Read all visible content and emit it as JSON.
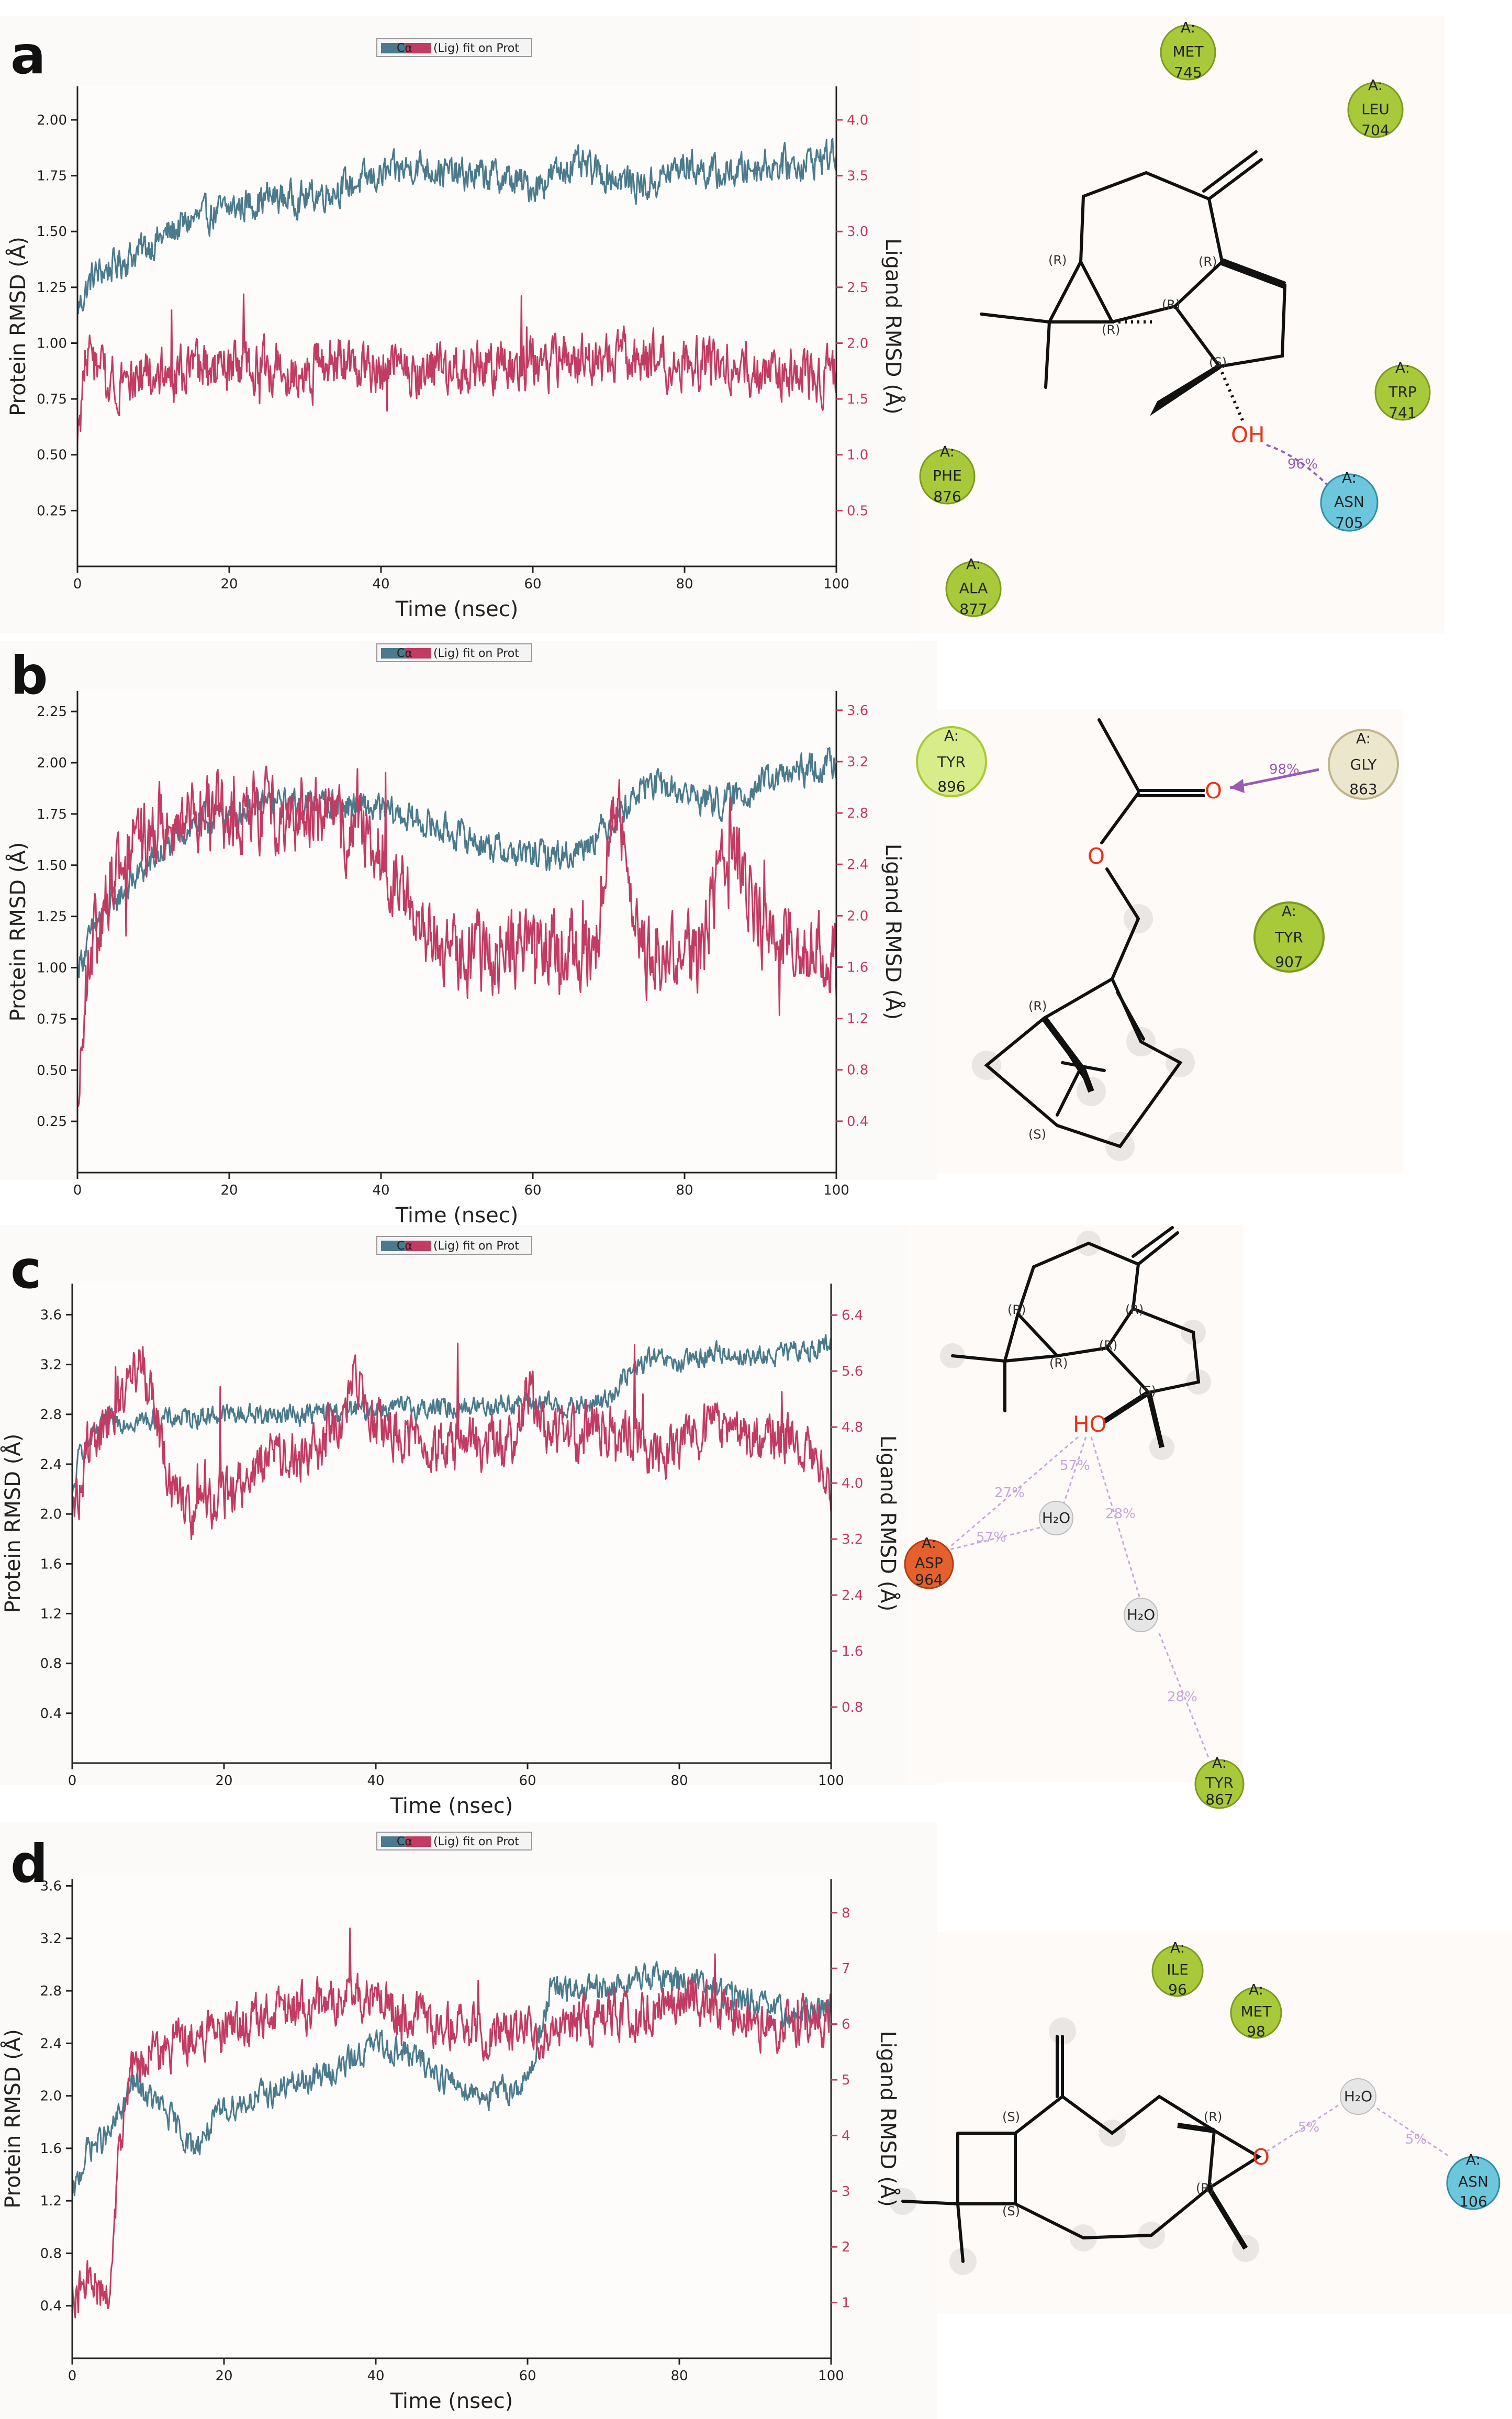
{
  "figure": {
    "colors": {
      "protein": "#4a7a8c",
      "ligand": "#c23b62",
      "hbond": "#9b5ab8",
      "hbond_light": "#c9a6dc",
      "hydrophobic": "#a8c93a",
      "polar": "#6cc7dd",
      "neutral": "#e8e2c8",
      "negative": "#e4602c",
      "water": "#e0e0e0"
    },
    "legend_text": "(Lig) fit on Prot",
    "legend_prefix": "Cα",
    "xlabel": "Time (nsec)",
    "ylabel_left": "Protein RMSD (Å)",
    "ylabel_right": "Ligand RMSD (Å)"
  },
  "chart_data": [
    {
      "panel": "a",
      "type": "line",
      "xlim": [
        0,
        100
      ],
      "x_ticks": [
        "0",
        "20",
        "40",
        "60",
        "80",
        "100"
      ],
      "left_ticks": [
        "0.25",
        "0.50",
        "0.75",
        "1.00",
        "1.25",
        "1.50",
        "1.75",
        "2.00"
      ],
      "left_tick_values": [
        0.25,
        0.5,
        0.75,
        1.0,
        1.25,
        1.5,
        1.75,
        2.0
      ],
      "ylim_left": [
        0.0,
        2.15
      ],
      "right_ticks": [
        "0.5",
        "1.0",
        "1.5",
        "2.0",
        "2.5",
        "3.0",
        "3.5",
        "4.0"
      ],
      "right_tick_values": [
        0.5,
        1.0,
        1.5,
        2.0,
        2.5,
        3.0,
        3.5,
        4.0
      ],
      "ylim_right": [
        0.0,
        4.3
      ],
      "series": [
        {
          "name": "Protein Cα RMSD",
          "axis": "left",
          "profile": [
            [
              0,
              1.15
            ],
            [
              2,
              1.3
            ],
            [
              5,
              1.35
            ],
            [
              10,
              1.45
            ],
            [
              15,
              1.55
            ],
            [
              20,
              1.6
            ],
            [
              25,
              1.65
            ],
            [
              30,
              1.65
            ],
            [
              35,
              1.7
            ],
            [
              40,
              1.75
            ],
            [
              45,
              1.8
            ],
            [
              50,
              1.75
            ],
            [
              55,
              1.75
            ],
            [
              60,
              1.7
            ],
            [
              65,
              1.8
            ],
            [
              70,
              1.75
            ],
            [
              75,
              1.7
            ],
            [
              80,
              1.8
            ],
            [
              85,
              1.75
            ],
            [
              90,
              1.8
            ],
            [
              95,
              1.8
            ],
            [
              100,
              1.85
            ]
          ],
          "noise": 0.07
        },
        {
          "name": "Ligand fit on Prot",
          "axis": "right",
          "profile": [
            [
              0,
              1.0
            ],
            [
              1,
              1.9
            ],
            [
              3,
              1.7
            ],
            [
              10,
              1.7
            ],
            [
              20,
              1.75
            ],
            [
              30,
              1.8
            ],
            [
              40,
              1.8
            ],
            [
              50,
              1.75
            ],
            [
              60,
              1.8
            ],
            [
              70,
              1.85
            ],
            [
              80,
              1.85
            ],
            [
              90,
              1.75
            ],
            [
              100,
              1.7
            ]
          ],
          "noise": 0.22
        }
      ]
    },
    {
      "panel": "b",
      "type": "line",
      "xlim": [
        0,
        100
      ],
      "x_ticks": [
        "0",
        "20",
        "40",
        "60",
        "80",
        "100"
      ],
      "left_ticks": [
        "0.25",
        "0.50",
        "0.75",
        "1.00",
        "1.25",
        "1.50",
        "1.75",
        "2.00",
        "2.25"
      ],
      "left_tick_values": [
        0.25,
        0.5,
        0.75,
        1.0,
        1.25,
        1.5,
        1.75,
        2.0,
        2.25
      ],
      "ylim_left": [
        0.0,
        2.35
      ],
      "right_ticks": [
        "0.4",
        "0.8",
        "1.2",
        "1.6",
        "2.0",
        "2.4",
        "2.8",
        "3.2",
        "3.6"
      ],
      "right_tick_values": [
        0.4,
        0.8,
        1.2,
        1.6,
        2.0,
        2.4,
        2.8,
        3.2,
        3.6
      ],
      "ylim_right": [
        0.0,
        3.75
      ],
      "series": [
        {
          "name": "Protein Cα RMSD",
          "axis": "left",
          "profile": [
            [
              0,
              1.0
            ],
            [
              3,
              1.25
            ],
            [
              8,
              1.45
            ],
            [
              15,
              1.7
            ],
            [
              25,
              1.8
            ],
            [
              35,
              1.8
            ],
            [
              42,
              1.75
            ],
            [
              50,
              1.65
            ],
            [
              58,
              1.55
            ],
            [
              65,
              1.55
            ],
            [
              70,
              1.7
            ],
            [
              75,
              1.9
            ],
            [
              80,
              1.85
            ],
            [
              85,
              1.8
            ],
            [
              90,
              1.9
            ],
            [
              95,
              1.95
            ],
            [
              100,
              2.0
            ]
          ],
          "noise": 0.07
        },
        {
          "name": "Ligand fit on Prot",
          "axis": "right",
          "profile": [
            [
              0,
              0.4
            ],
            [
              1,
              1.5
            ],
            [
              5,
              2.4
            ],
            [
              10,
              2.7
            ],
            [
              20,
              2.8
            ],
            [
              30,
              2.8
            ],
            [
              38,
              2.6
            ],
            [
              43,
              2.2
            ],
            [
              48,
              1.7
            ],
            [
              55,
              1.7
            ],
            [
              62,
              1.8
            ],
            [
              68,
              1.7
            ],
            [
              71,
              2.9
            ],
            [
              75,
              1.7
            ],
            [
              82,
              1.7
            ],
            [
              86,
              2.6
            ],
            [
              90,
              1.9
            ],
            [
              95,
              1.8
            ],
            [
              100,
              1.7
            ]
          ],
          "noise": 0.28
        }
      ]
    },
    {
      "panel": "c",
      "type": "line",
      "xlim": [
        0,
        100
      ],
      "x_ticks": [
        "0",
        "20",
        "40",
        "60",
        "80",
        "100"
      ],
      "left_ticks": [
        "0.4",
        "0.8",
        "1.2",
        "1.6",
        "2.0",
        "2.4",
        "2.8",
        "3.2",
        "3.6"
      ],
      "left_tick_values": [
        0.4,
        0.8,
        1.2,
        1.6,
        2.0,
        2.4,
        2.8,
        3.2,
        3.6
      ],
      "ylim_left": [
        0.0,
        3.85
      ],
      "right_ticks": [
        "0.8",
        "1.6",
        "2.4",
        "3.2",
        "4.0",
        "4.8",
        "5.6",
        "6.4"
      ],
      "right_tick_values": [
        0.8,
        1.6,
        2.4,
        3.2,
        4.0,
        4.8,
        5.6,
        6.4
      ],
      "ylim_right": [
        0.0,
        6.85
      ],
      "series": [
        {
          "name": "Protein Cα RMSD",
          "axis": "left",
          "profile": [
            [
              0,
              2.1
            ],
            [
              1,
              2.5
            ],
            [
              5,
              2.75
            ],
            [
              10,
              2.75
            ],
            [
              20,
              2.8
            ],
            [
              30,
              2.8
            ],
            [
              40,
              2.85
            ],
            [
              50,
              2.85
            ],
            [
              60,
              2.9
            ],
            [
              66,
              2.85
            ],
            [
              70,
              2.9
            ],
            [
              73,
              3.1
            ],
            [
              76,
              3.25
            ],
            [
              80,
              3.2
            ],
            [
              85,
              3.3
            ],
            [
              90,
              3.25
            ],
            [
              95,
              3.3
            ],
            [
              100,
              3.35
            ]
          ],
          "noise": 0.08
        },
        {
          "name": "Ligand fit on Prot",
          "axis": "right",
          "profile": [
            [
              0,
              3.4
            ],
            [
              2,
              4.5
            ],
            [
              6,
              5.1
            ],
            [
              9,
              5.8
            ],
            [
              11,
              5.0
            ],
            [
              13,
              3.9
            ],
            [
              16,
              3.5
            ],
            [
              20,
              3.8
            ],
            [
              25,
              4.3
            ],
            [
              30,
              4.4
            ],
            [
              35,
              4.8
            ],
            [
              37,
              5.6
            ],
            [
              40,
              4.8
            ],
            [
              50,
              4.5
            ],
            [
              58,
              4.6
            ],
            [
              60,
              5.3
            ],
            [
              63,
              4.6
            ],
            [
              70,
              4.8
            ],
            [
              78,
              4.4
            ],
            [
              85,
              4.8
            ],
            [
              90,
              4.6
            ],
            [
              95,
              4.7
            ],
            [
              100,
              4.0
            ]
          ],
          "noise": 0.35
        }
      ]
    },
    {
      "panel": "d",
      "type": "line",
      "xlim": [
        0,
        100
      ],
      "x_ticks": [
        "0",
        "20",
        "40",
        "60",
        "80",
        "100"
      ],
      "left_ticks": [
        "0.4",
        "0.8",
        "1.2",
        "1.6",
        "2.0",
        "2.4",
        "2.8",
        "3.2",
        "3.6"
      ],
      "left_tick_values": [
        0.4,
        0.8,
        1.2,
        1.6,
        2.0,
        2.4,
        2.8,
        3.2,
        3.6
      ],
      "ylim_left": [
        0.0,
        3.65
      ],
      "right_ticks": [
        "1",
        "2",
        "3",
        "4",
        "5",
        "6",
        "7",
        "8"
      ],
      "right_tick_values": [
        1,
        2,
        3,
        4,
        5,
        6,
        7,
        8
      ],
      "ylim_right": [
        0.0,
        8.6
      ],
      "series": [
        {
          "name": "Protein Cα RMSD",
          "axis": "left",
          "profile": [
            [
              0,
              1.2
            ],
            [
              2,
              1.6
            ],
            [
              5,
              1.7
            ],
            [
              8,
              2.1
            ],
            [
              12,
              1.9
            ],
            [
              16,
              1.6
            ],
            [
              20,
              1.9
            ],
            [
              25,
              2.0
            ],
            [
              30,
              2.1
            ],
            [
              35,
              2.2
            ],
            [
              40,
              2.4
            ],
            [
              45,
              2.3
            ],
            [
              50,
              2.1
            ],
            [
              55,
              2.0
            ],
            [
              60,
              2.1
            ],
            [
              63,
              2.8
            ],
            [
              70,
              2.8
            ],
            [
              75,
              2.9
            ],
            [
              80,
              2.9
            ],
            [
              85,
              2.8
            ],
            [
              90,
              2.7
            ],
            [
              95,
              2.6
            ],
            [
              100,
              2.7
            ]
          ],
          "noise": 0.1
        },
        {
          "name": "Ligand fit on Prot",
          "axis": "right",
          "profile": [
            [
              0,
              1.2
            ],
            [
              3,
              1.3
            ],
            [
              5,
              1.2
            ],
            [
              6,
              3.5
            ],
            [
              8,
              5.2
            ],
            [
              12,
              5.6
            ],
            [
              18,
              5.8
            ],
            [
              25,
              6.1
            ],
            [
              30,
              6.3
            ],
            [
              38,
              6.5
            ],
            [
              42,
              6.3
            ],
            [
              48,
              6.0
            ],
            [
              55,
              5.8
            ],
            [
              62,
              5.9
            ],
            [
              70,
              6.1
            ],
            [
              75,
              6.2
            ],
            [
              80,
              6.5
            ],
            [
              85,
              6.3
            ],
            [
              90,
              6.0
            ],
            [
              95,
              6.0
            ],
            [
              100,
              6.1
            ]
          ],
          "noise": 0.4
        }
      ]
    }
  ],
  "panels": [
    {
      "label": "a"
    },
    {
      "label": "b"
    },
    {
      "label": "c"
    },
    {
      "label": "d"
    }
  ],
  "diagrams": {
    "a": {
      "residues": [
        {
          "chain": "A:",
          "name": "MET",
          "num": "745"
        },
        {
          "chain": "A:",
          "name": "LEU",
          "num": "704"
        },
        {
          "chain": "A:",
          "name": "TRP",
          "num": "741"
        },
        {
          "chain": "A:",
          "name": "PHE",
          "num": "876"
        },
        {
          "chain": "A:",
          "name": "ASN",
          "num": "705"
        },
        {
          "chain": "A:",
          "name": "ALA",
          "num": "877"
        }
      ],
      "atom": "OH",
      "stereo": [
        "(R)",
        "(R)",
        "(R)",
        "(R)",
        "(S)"
      ],
      "hbond_pct": "96%"
    },
    "b": {
      "residues": [
        {
          "chain": "A:",
          "name": "TYR",
          "num": "896"
        },
        {
          "chain": "A:",
          "name": "GLY",
          "num": "863"
        },
        {
          "chain": "A:",
          "name": "TYR",
          "num": "907"
        }
      ],
      "atom_o1": "O",
      "atom_o2": "O",
      "stereo": [
        "(R)",
        "(S)"
      ],
      "hbond_pct": "98%"
    },
    "c": {
      "residues": [
        {
          "chain": "A:",
          "name": "ASP",
          "num": "964"
        },
        {
          "chain": "A:",
          "name": "TYR",
          "num": "867"
        }
      ],
      "atom": "HO",
      "water": "H₂O",
      "stereo": [
        "(R)",
        "(R)",
        "(R)",
        "(R)",
        "(S)"
      ],
      "pcts": [
        "27%",
        "57%",
        "57%",
        "28%",
        "28%"
      ]
    },
    "d": {
      "residues": [
        {
          "chain": "A:",
          "name": "ILE",
          "num": "96"
        },
        {
          "chain": "A:",
          "name": "MET",
          "num": "98"
        },
        {
          "chain": "A:",
          "name": "ASN",
          "num": "106"
        }
      ],
      "atom": "O",
      "water": "H₂O",
      "stereo": [
        "(S)",
        "(S)",
        "(R)",
        "(R)"
      ],
      "pcts": [
        "5%",
        "5%"
      ]
    }
  }
}
